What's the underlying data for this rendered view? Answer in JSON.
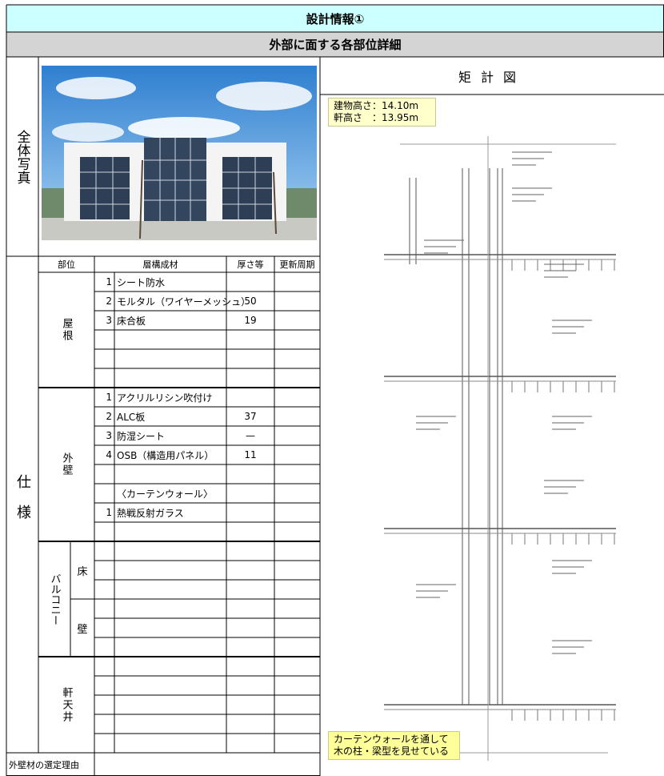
{
  "header": {
    "title": "設計情報①",
    "subtitle": "外部に面する各部位詳細"
  },
  "photo_section": {
    "label": "全体写真"
  },
  "drawing": {
    "title": "矩計図",
    "building_height": "建物高さ：14.10m",
    "eave_height": "軒高さ　：13.95m",
    "note": [
      "カーテンウォールを通して",
      "木の柱・梁型を見せている"
    ]
  },
  "spec": {
    "label": "仕様",
    "columns": [
      "部位",
      "層構成材",
      "厚さ等",
      "更新周期"
    ],
    "roof": {
      "label": "屋根",
      "items": [
        {
          "no": 1,
          "material": "シート防水"
        },
        {
          "no": 2,
          "material": "モルタル（ワイヤーメッシュ）",
          "thickness": 50
        },
        {
          "no": 3,
          "material": "床合板",
          "thickness": 19
        }
      ]
    },
    "wall": {
      "label": "外壁",
      "items": [
        {
          "no": 1,
          "material": "アクリルリシン吹付け"
        },
        {
          "no": 2,
          "material": "ALC板",
          "thickness": 37
        },
        {
          "no": 3,
          "material": "防湿シート",
          "thickness": "—"
        },
        {
          "no": 4,
          "material": "OSB（構造用パネル）",
          "thickness": 11
        },
        {
          "material": "〈カーテンウォール〉"
        },
        {
          "no": 1,
          "material": "熱戦反射ガラス"
        }
      ]
    },
    "balcony": {
      "label": "バルコニー",
      "floor": "床",
      "wall": "壁"
    },
    "eaves": {
      "label": "軒天井"
    }
  },
  "footer": {
    "label": "外壁材の選定理由"
  }
}
